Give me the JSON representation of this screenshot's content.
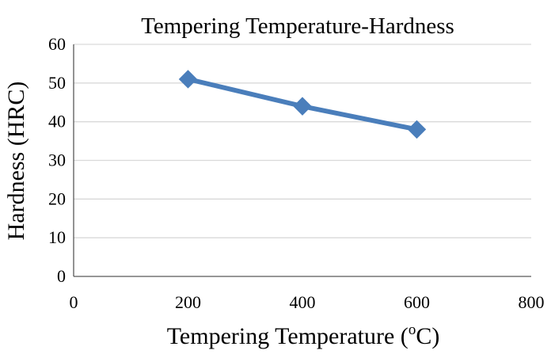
{
  "chart_data": {
    "type": "line",
    "title": "Tempering Temperature-Hardness",
    "xlabel": "Tempering Temperature (",
    "xlabel_unit_sup": "o",
    "xlabel_unit_main": "C)",
    "ylabel": "Hardness (HRC)",
    "xlim": [
      0,
      800
    ],
    "ylim": [
      0,
      60
    ],
    "x_ticks": [
      0,
      200,
      400,
      600,
      800
    ],
    "y_ticks": [
      0,
      10,
      20,
      30,
      40,
      50,
      60
    ],
    "grid": "horizontal",
    "series": [
      {
        "x": [
          200,
          400,
          600
        ],
        "values": [
          51,
          44,
          38
        ],
        "color": "#4a7ebb",
        "marker": "diamond"
      }
    ]
  }
}
